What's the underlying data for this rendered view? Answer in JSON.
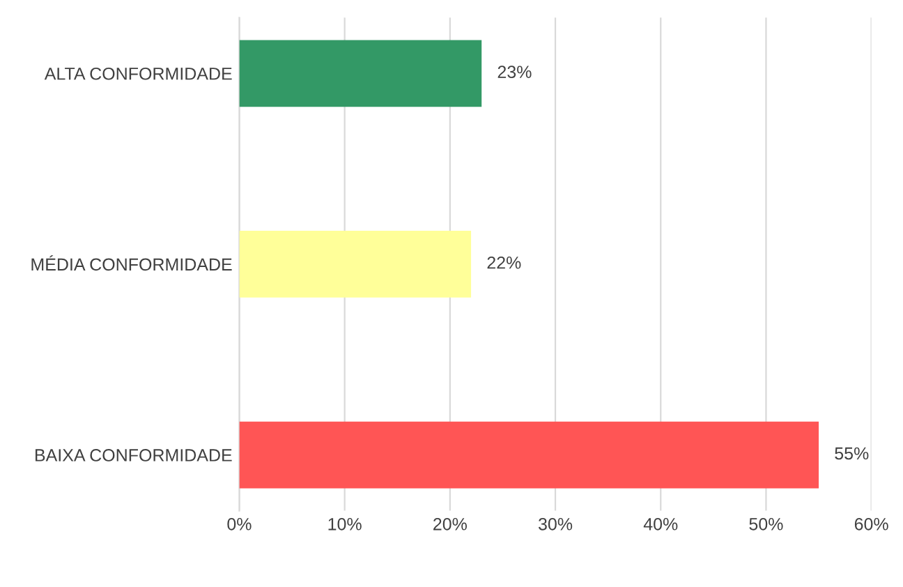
{
  "chart_data": {
    "type": "bar",
    "orientation": "horizontal",
    "categories": [
      "ALTA CONFORMIDADE",
      "MÉDIA CONFORMIDADE",
      "BAIXA CONFORMIDADE"
    ],
    "values": [
      23,
      22,
      55
    ],
    "colors": [
      "#339966",
      "#ffff99",
      "#ff5555"
    ],
    "value_labels": [
      "23%",
      "22%",
      "55%"
    ],
    "xlim": [
      0,
      60
    ],
    "xticks": [
      {
        "value": 0,
        "label": "0%"
      },
      {
        "value": 10,
        "label": "10%"
      },
      {
        "value": 20,
        "label": "20%"
      },
      {
        "value": 30,
        "label": "30%"
      },
      {
        "value": 40,
        "label": "40%"
      },
      {
        "value": 50,
        "label": "50%"
      },
      {
        "value": 60,
        "label": "60%"
      }
    ],
    "grid": "x",
    "legend": false
  }
}
